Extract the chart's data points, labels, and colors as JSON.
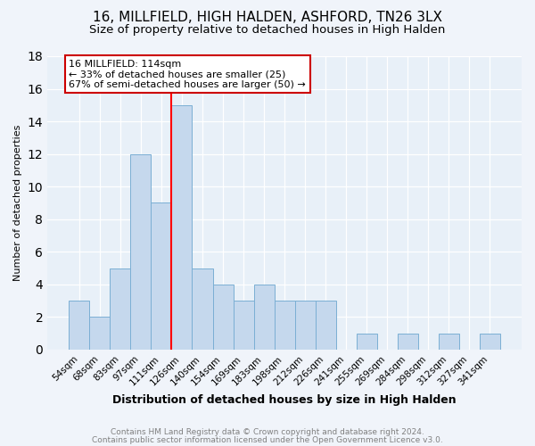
{
  "title": "16, MILLFIELD, HIGH HALDEN, ASHFORD, TN26 3LX",
  "subtitle": "Size of property relative to detached houses in High Halden",
  "xlabel": "Distribution of detached houses by size in High Halden",
  "ylabel": "Number of detached properties",
  "categories": [
    "54sqm",
    "68sqm",
    "83sqm",
    "97sqm",
    "111sqm",
    "126sqm",
    "140sqm",
    "154sqm",
    "169sqm",
    "183sqm",
    "198sqm",
    "212sqm",
    "226sqm",
    "241sqm",
    "255sqm",
    "269sqm",
    "284sqm",
    "298sqm",
    "312sqm",
    "327sqm",
    "341sqm"
  ],
  "values": [
    3,
    2,
    5,
    12,
    9,
    15,
    5,
    4,
    3,
    4,
    3,
    3,
    3,
    0,
    1,
    0,
    1,
    0,
    1,
    0,
    1
  ],
  "bar_color": "#c5d8ed",
  "bar_edge_color": "#7bafd4",
  "red_line_x": 4.5,
  "annotation_title": "16 MILLFIELD: 114sqm",
  "annotation_line1": "← 33% of detached houses are smaller (25)",
  "annotation_line2": "67% of semi-detached houses are larger (50) →",
  "ylim": [
    0,
    18
  ],
  "yticks": [
    0,
    2,
    4,
    6,
    8,
    10,
    12,
    14,
    16,
    18
  ],
  "footer1": "Contains HM Land Registry data © Crown copyright and database right 2024.",
  "footer2": "Contains public sector information licensed under the Open Government Licence v3.0.",
  "bg_color": "#f0f4fa",
  "plot_bg_color": "#e8f0f8",
  "title_fontsize": 11,
  "subtitle_fontsize": 9.5,
  "xlabel_fontsize": 9,
  "ylabel_fontsize": 8,
  "annotation_fontsize": 8,
  "footer_fontsize": 6.5,
  "annotation_box_color": "white",
  "annotation_box_edge": "#cc0000"
}
